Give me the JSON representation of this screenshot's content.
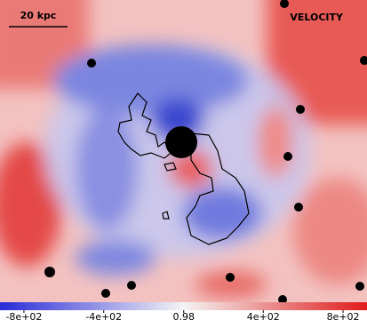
{
  "image": {
    "scale_bar": "20 kpc",
    "label": "VELOCITY"
  },
  "colorbar": {
    "lim": [
      -920,
      920
    ],
    "ticks": [
      {
        "value": -800,
        "label": "-8e+02"
      },
      {
        "value": -400,
        "label": "-4e+02"
      },
      0.98,
      {
        "value": 400,
        "label": "4e+02"
      },
      {
        "value": 800,
        "label": "8e+02"
      }
    ]
  }
}
